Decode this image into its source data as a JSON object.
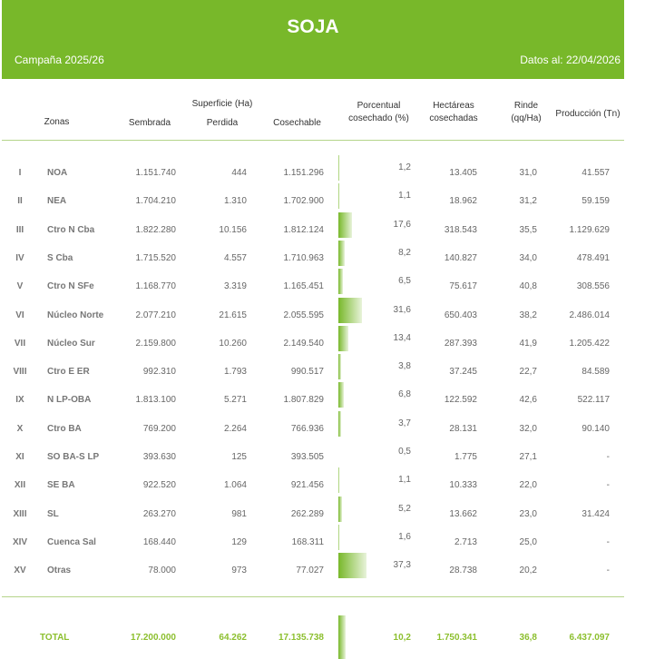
{
  "header": {
    "title": "SOJA",
    "campaign": "Campaña 2025/26",
    "date": "Datos al: 22/04/2026",
    "color": "#78b82a"
  },
  "columns": {
    "group": "Superficie (Ha)",
    "zonas": "Zonas",
    "sembrada": "Sembrada",
    "perdida": "Perdida",
    "cosechable": "Cosechable",
    "pct": "Porcentual cosechado (%)",
    "hectareas": "Hectáreas cosechadas",
    "rinde": "Rinde (qq/Ha)",
    "produccion": "Producción (Tn)"
  },
  "rows": [
    {
      "num": "I",
      "zona": "NOA",
      "sembrada": "1.151.740",
      "perdida": "444",
      "cosechable": "1.151.296",
      "pct": "1,2",
      "hectareas": "13.405",
      "rinde": "31,0",
      "produccion": "41.557"
    },
    {
      "num": "II",
      "zona": "NEA",
      "sembrada": "1.704.210",
      "perdida": "1.310",
      "cosechable": "1.702.900",
      "pct": "1,1",
      "hectareas": "18.962",
      "rinde": "31,2",
      "produccion": "59.159"
    },
    {
      "num": "III",
      "zona": "Ctro N Cba",
      "sembrada": "1.822.280",
      "perdida": "10.156",
      "cosechable": "1.812.124",
      "pct": "17,6",
      "hectareas": "318.543",
      "rinde": "35,5",
      "produccion": "1.129.629"
    },
    {
      "num": "IV",
      "zona": "S Cba",
      "sembrada": "1.715.520",
      "perdida": "4.557",
      "cosechable": "1.710.963",
      "pct": "8,2",
      "hectareas": "140.827",
      "rinde": "34,0",
      "produccion": "478.491"
    },
    {
      "num": "V",
      "zona": "Ctro N SFe",
      "sembrada": "1.168.770",
      "perdida": "3.319",
      "cosechable": "1.165.451",
      "pct": "6,5",
      "hectareas": "75.617",
      "rinde": "40,8",
      "produccion": "308.556"
    },
    {
      "num": "VI",
      "zona": "Núcleo Norte",
      "sembrada": "2.077.210",
      "perdida": "21.615",
      "cosechable": "2.055.595",
      "pct": "31,6",
      "hectareas": "650.403",
      "rinde": "38,2",
      "produccion": "2.486.014"
    },
    {
      "num": "VII",
      "zona": "Núcleo Sur",
      "sembrada": "2.159.800",
      "perdida": "10.260",
      "cosechable": "2.149.540",
      "pct": "13,4",
      "hectareas": "287.393",
      "rinde": "41,9",
      "produccion": "1.205.422"
    },
    {
      "num": "VIII",
      "zona": "Ctro E ER",
      "sembrada": "992.310",
      "perdida": "1.793",
      "cosechable": "990.517",
      "pct": "3,8",
      "hectareas": "37.245",
      "rinde": "22,7",
      "produccion": "84.589"
    },
    {
      "num": "IX",
      "zona": "N LP-OBA",
      "sembrada": "1.813.100",
      "perdida": "5.271",
      "cosechable": "1.807.829",
      "pct": "6,8",
      "hectareas": "122.592",
      "rinde": "42,6",
      "produccion": "522.117"
    },
    {
      "num": "X",
      "zona": "Ctro BA",
      "sembrada": "769.200",
      "perdida": "2.264",
      "cosechable": "766.936",
      "pct": "3,7",
      "hectareas": "28.131",
      "rinde": "32,0",
      "produccion": "90.140"
    },
    {
      "num": "XI",
      "zona": "SO BA-S LP",
      "sembrada": "393.630",
      "perdida": "125",
      "cosechable": "393.505",
      "pct": "0,5",
      "hectareas": "1.775",
      "rinde": "27,1",
      "produccion": "-"
    },
    {
      "num": "XII",
      "zona": "SE BA",
      "sembrada": "922.520",
      "perdida": "1.064",
      "cosechable": "921.456",
      "pct": "1,1",
      "hectareas": "10.333",
      "rinde": "22,0",
      "produccion": "-"
    },
    {
      "num": "XIII",
      "zona": "SL",
      "sembrada": "263.270",
      "perdida": "981",
      "cosechable": "262.289",
      "pct": "5,2",
      "hectareas": "13.662",
      "rinde": "23,0",
      "produccion": "31.424"
    },
    {
      "num": "XIV",
      "zona": "Cuenca Sal",
      "sembrada": "168.440",
      "perdida": "129",
      "cosechable": "168.311",
      "pct": "1,6",
      "hectareas": "2.713",
      "rinde": "25,0",
      "produccion": "-"
    },
    {
      "num": "XV",
      "zona": "Otras",
      "sembrada": "78.000",
      "perdida": "973",
      "cosechable": "77.027",
      "pct": "37,3",
      "hectareas": "28.738",
      "rinde": "20,2",
      "produccion": "-"
    }
  ],
  "total": {
    "label": "TOTAL",
    "sembrada": "17.200.000",
    "perdida": "64.262",
    "cosechable": "17.135.738",
    "pct": "10,2",
    "hectareas": "1.750.341",
    "rinde": "36,8",
    "produccion": "6.437.097"
  }
}
